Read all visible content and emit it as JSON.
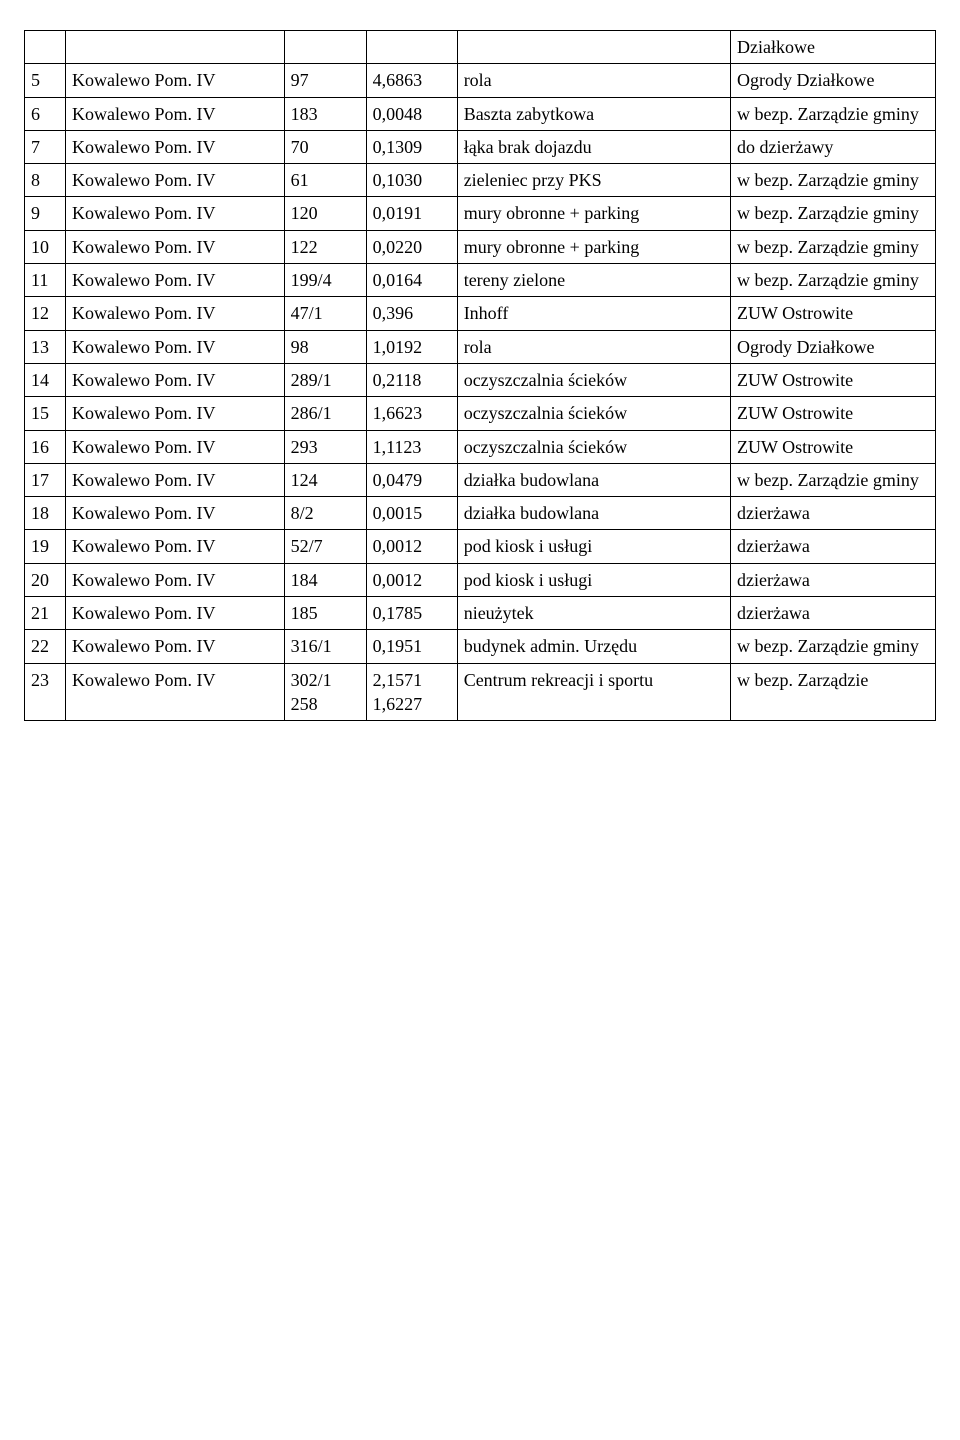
{
  "table": {
    "rows": [
      {
        "c0": "",
        "c1": "",
        "c2": "",
        "c3": "",
        "c4": "",
        "c5": "Działkowe"
      },
      {
        "c0": "5",
        "c1": "Kowalewo Pom. IV",
        "c2": "97",
        "c3": "4,6863",
        "c4": "rola",
        "c5": "Ogrody Działkowe"
      },
      {
        "c0": "6",
        "c1": "Kowalewo Pom. IV",
        "c2": "183",
        "c3": "0,0048",
        "c4": "Baszta zabytkowa",
        "c5": "w bezp. Zarządzie gminy"
      },
      {
        "c0": "7",
        "c1": "Kowalewo Pom. IV",
        "c2": "70",
        "c3": "0,1309",
        "c4": "łąka brak dojazdu",
        "c5": "do dzierżawy"
      },
      {
        "c0": "8",
        "c1": "Kowalewo Pom. IV",
        "c2": "61",
        "c3": "0,1030",
        "c4": "zieleniec przy PKS",
        "c5": "w bezp. Zarządzie gminy"
      },
      {
        "c0": "9",
        "c1": "Kowalewo Pom. IV",
        "c2": "120",
        "c3": "0,0191",
        "c4": "mury obronne + parking",
        "c5": "w bezp. Zarządzie gminy"
      },
      {
        "c0": "10",
        "c1": "Kowalewo Pom. IV",
        "c2": "122",
        "c3": "0,0220",
        "c4": "mury obronne + parking",
        "c5": "w bezp. Zarządzie gminy"
      },
      {
        "c0": "11",
        "c1": "Kowalewo Pom. IV",
        "c2": "199/4",
        "c3": "0,0164",
        "c4": "tereny zielone",
        "c5": "w bezp. Zarządzie gminy"
      },
      {
        "c0": "12",
        "c1": "Kowalewo Pom. IV",
        "c2": "47/1",
        "c3": "0,396",
        "c4": "Inhoff",
        "c5": "ZUW Ostrowite"
      },
      {
        "c0": "13",
        "c1": "Kowalewo Pom. IV",
        "c2": "98",
        "c3": "1,0192",
        "c4": "rola",
        "c5": "Ogrody Działkowe"
      },
      {
        "c0": "14",
        "c1": "Kowalewo Pom. IV",
        "c2": "289/1",
        "c3": "0,2118",
        "c4": "oczyszczalnia ścieków",
        "c5": "ZUW Ostrowite"
      },
      {
        "c0": "15",
        "c1": "Kowalewo Pom. IV",
        "c2": "286/1",
        "c3": "1,6623",
        "c4": "oczyszczalnia ścieków",
        "c5": "ZUW Ostrowite"
      },
      {
        "c0": "16",
        "c1": "Kowalewo Pom. IV",
        "c2": "293",
        "c3": "1,1123",
        "c4": "oczyszczalnia ścieków",
        "c5": "ZUW Ostrowite"
      },
      {
        "c0": "17",
        "c1": "Kowalewo Pom. IV",
        "c2": "124",
        "c3": "0,0479",
        "c4": "działka budowlana",
        "c5": "w bezp. Zarządzie gminy"
      },
      {
        "c0": "18",
        "c1": "Kowalewo Pom. IV",
        "c2": "8/2",
        "c3": "0,0015",
        "c4": "działka budowlana",
        "c5": "dzierżawa"
      },
      {
        "c0": "19",
        "c1": "Kowalewo Pom. IV",
        "c2": "52/7",
        "c3": "0,0012",
        "c4": "pod kiosk i usługi",
        "c5": "dzierżawa"
      },
      {
        "c0": "20",
        "c1": "Kowalewo Pom. IV",
        "c2": "184",
        "c3": "0,0012",
        "c4": "pod kiosk i usługi",
        "c5": "dzierżawa"
      },
      {
        "c0": "21",
        "c1": "Kowalewo Pom. IV",
        "c2": "185",
        "c3": "0,1785",
        "c4": "nieużytek",
        "c5": "dzierżawa"
      },
      {
        "c0": "22",
        "c1": "Kowalewo Pom. IV",
        "c2": "316/1",
        "c3": "0,1951",
        "c4": "budynek admin. Urzędu",
        "c5": "w bezp. Zarządzie gminy"
      },
      {
        "c0": "23",
        "c1": "Kowalewo Pom. IV",
        "c2": "302/1\n258",
        "c3": "2,1571\n1,6227",
        "c4": "Centrum rekreacji i sportu",
        "c5": "w bezp. Zarządzie"
      }
    ]
  }
}
